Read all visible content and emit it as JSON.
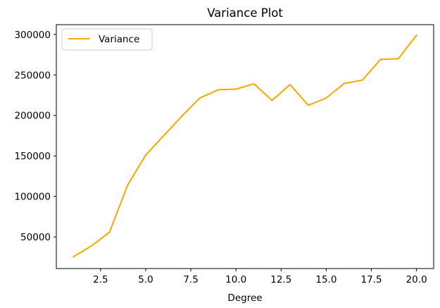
{
  "chart_data": {
    "type": "line",
    "title": "Variance Plot",
    "xlabel": "Degree",
    "ylabel": "",
    "xlim": [
      0.05,
      20.95
    ],
    "ylim": [
      11000,
      312000
    ],
    "xticks": [
      2.5,
      5.0,
      7.5,
      10.0,
      12.5,
      15.0,
      17.5,
      20.0
    ],
    "xtick_labels": [
      "2.5",
      "5.0",
      "7.5",
      "10.0",
      "12.5",
      "15.0",
      "17.5",
      "20.0"
    ],
    "yticks": [
      50000,
      100000,
      150000,
      200000,
      250000,
      300000
    ],
    "ytick_labels": [
      "50000",
      "100000",
      "150000",
      "200000",
      "250000",
      "300000"
    ],
    "grid": false,
    "legend_position": "upper-left",
    "series": [
      {
        "name": "Variance",
        "color": "#FFA500",
        "x": [
          1,
          2,
          3,
          4,
          5,
          6,
          7,
          8,
          9,
          10,
          11,
          12,
          13,
          14,
          15,
          16,
          17,
          18,
          19,
          20
        ],
        "y": [
          25500,
          39000,
          56000,
          114000,
          151000,
          175000,
          199000,
          221500,
          231500,
          232500,
          239000,
          218500,
          238000,
          212500,
          221500,
          239500,
          243500,
          269000,
          270000,
          299000
        ]
      }
    ]
  }
}
